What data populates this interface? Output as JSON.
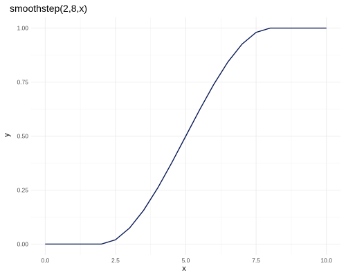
{
  "chart_data": {
    "type": "line",
    "title": "smoothstep(2,8,x)",
    "xlabel": "x",
    "ylabel": "y",
    "xlim": [
      -0.5,
      10.5
    ],
    "ylim": [
      -0.05,
      1.05
    ],
    "x_ticks": [
      {
        "value": 0,
        "label": "0.0"
      },
      {
        "value": 2.5,
        "label": "2.5"
      },
      {
        "value": 5,
        "label": "5.0"
      },
      {
        "value": 7.5,
        "label": "7.5"
      },
      {
        "value": 10,
        "label": "10.0"
      }
    ],
    "y_ticks": [
      {
        "value": 0,
        "label": "0.00"
      },
      {
        "value": 0.25,
        "label": "0.25"
      },
      {
        "value": 0.5,
        "label": "0.50"
      },
      {
        "value": 0.75,
        "label": "0.75"
      },
      {
        "value": 1,
        "label": "1.00"
      }
    ],
    "x_minor": [
      1.25,
      3.75,
      6.25,
      8.75
    ],
    "y_minor": [
      0.125,
      0.375,
      0.625,
      0.875
    ],
    "grid": true,
    "series": [
      {
        "color": "#0b1a57",
        "x": [
          0,
          0.5,
          1,
          1.5,
          2,
          2.5,
          3,
          3.5,
          4,
          4.5,
          5,
          5.5,
          6,
          6.5,
          7,
          7.5,
          8,
          8.5,
          9,
          9.5,
          10
        ],
        "y": [
          0,
          0,
          0,
          0,
          0,
          0.0197,
          0.0741,
          0.1563,
          0.2593,
          0.3762,
          0.5,
          0.6238,
          0.7407,
          0.8438,
          0.9259,
          0.9803,
          1,
          1,
          1,
          1,
          1
        ]
      }
    ]
  }
}
